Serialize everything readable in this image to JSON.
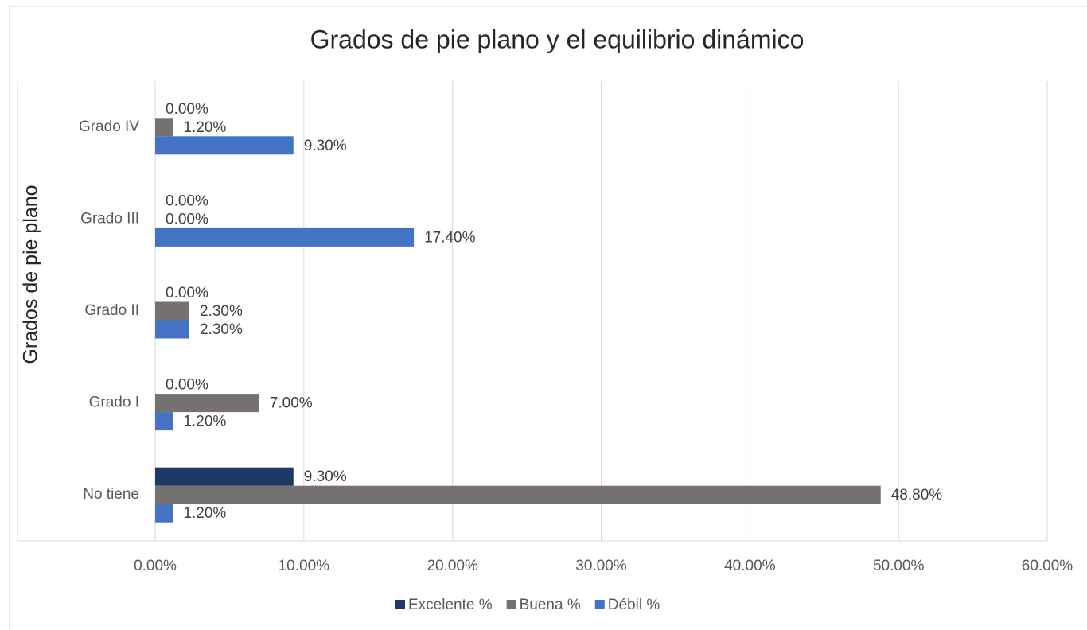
{
  "chart_data": {
    "type": "bar",
    "orientation": "horizontal",
    "title": "Grados de pie plano y el equilibrio dinámico",
    "y_axis_label": "Grados de pie plano",
    "categories": [
      "Grado IV",
      "Grado III",
      "Grado II",
      "Grado I",
      "No tiene"
    ],
    "series": [
      {
        "name": "Excelente %",
        "color": "#203864",
        "values": [
          0,
          0,
          0,
          0,
          9.3
        ],
        "value_labels": [
          "0.00%",
          "0.00%",
          "0.00%",
          "0.00%",
          "9.30%"
        ]
      },
      {
        "name": "Buena %",
        "color": "#767171",
        "values": [
          1.2,
          0,
          2.3,
          7.0,
          48.8
        ],
        "value_labels": [
          "1.20%",
          "0.00%",
          "2.30%",
          "7.00%",
          "48.80%"
        ]
      },
      {
        "name": "Débil %",
        "color": "#4472c4",
        "values": [
          9.3,
          17.4,
          2.3,
          1.2,
          1.2
        ],
        "value_labels": [
          "9.30%",
          "17.40%",
          "2.30%",
          "1.20%",
          "1.20%"
        ]
      }
    ],
    "xlim": [
      0,
      60
    ],
    "xticks": [
      {
        "value": 0,
        "label": "0.00%"
      },
      {
        "value": 10,
        "label": "10.00%"
      },
      {
        "value": 20,
        "label": "20.00%"
      },
      {
        "value": 30,
        "label": "30.00%"
      },
      {
        "value": 40,
        "label": "40.00%"
      },
      {
        "value": 50,
        "label": "50.00%"
      },
      {
        "value": 60,
        "label": "60.00%"
      }
    ],
    "grid": true,
    "legend": "bottom"
  }
}
